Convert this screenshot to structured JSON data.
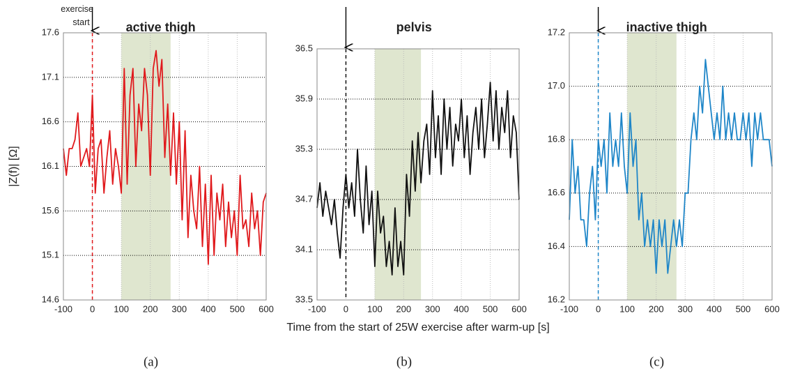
{
  "xlabel": "Time from the start of 25W exercise after warm-up [s]",
  "chart_data": [
    {
      "type": "line",
      "title": "active thigh",
      "panel_label": "(a)",
      "ylabel": "|Z(f)| [Ω]",
      "annotation": "exercise start",
      "event_x": 0,
      "shade": [
        100,
        270
      ],
      "shade_color": "#dfe6cf",
      "event_color": "#e0191c",
      "grid": true,
      "xlim": [
        -100,
        600
      ],
      "xticks": [
        -100,
        0,
        100,
        200,
        300,
        400,
        500,
        600
      ],
      "ylim": [
        14.6,
        17.6
      ],
      "yticks": [
        14.6,
        15.1,
        15.6,
        16.1,
        16.6,
        17.1,
        17.6
      ],
      "x": [
        -100,
        -90,
        -80,
        -70,
        -60,
        -50,
        -40,
        -30,
        -20,
        -10,
        0,
        10,
        20,
        30,
        40,
        50,
        60,
        70,
        80,
        90,
        100,
        110,
        120,
        130,
        140,
        150,
        160,
        170,
        180,
        190,
        200,
        210,
        220,
        230,
        240,
        250,
        260,
        270,
        280,
        290,
        300,
        310,
        320,
        330,
        340,
        350,
        360,
        370,
        380,
        390,
        400,
        410,
        420,
        430,
        440,
        450,
        460,
        470,
        480,
        490,
        500,
        510,
        520,
        530,
        540,
        550,
        560,
        570,
        580,
        590,
        600
      ],
      "series": [
        {
          "color": "#e0191c",
          "values": [
            16.3,
            16.0,
            16.3,
            16.3,
            16.4,
            16.7,
            16.1,
            16.2,
            16.3,
            16.1,
            16.9,
            15.8,
            16.3,
            16.4,
            15.8,
            16.2,
            16.5,
            15.9,
            16.3,
            16.1,
            15.8,
            17.2,
            15.9,
            16.9,
            17.2,
            16.1,
            16.8,
            16.5,
            17.2,
            16.9,
            16.0,
            17.2,
            17.4,
            17.0,
            17.3,
            16.2,
            16.8,
            16.0,
            16.7,
            15.9,
            16.6,
            15.5,
            16.5,
            15.3,
            16.0,
            15.6,
            15.4,
            16.1,
            15.2,
            15.9,
            15.0,
            16.0,
            15.1,
            15.8,
            15.5,
            15.9,
            15.2,
            15.7,
            15.3,
            15.6,
            15.1,
            16.0,
            15.4,
            15.5,
            15.2,
            15.8,
            15.4,
            15.6,
            15.1,
            15.7,
            15.8
          ]
        }
      ]
    },
    {
      "type": "line",
      "title": "pelvis",
      "panel_label": "(b)",
      "event_x": 0,
      "shade": [
        100,
        260
      ],
      "shade_color": "#dfe6cf",
      "event_color": "#111111",
      "grid": true,
      "xlim": [
        -100,
        600
      ],
      "xticks": [
        -100,
        0,
        100,
        200,
        300,
        400,
        500,
        600
      ],
      "ylim": [
        33.5,
        36.5
      ],
      "yticks": [
        33.5,
        34.1,
        34.7,
        35.3,
        35.9,
        36.5
      ],
      "x": [
        -100,
        -90,
        -80,
        -70,
        -60,
        -50,
        -40,
        -30,
        -20,
        -10,
        0,
        10,
        20,
        30,
        40,
        50,
        60,
        70,
        80,
        90,
        100,
        110,
        120,
        130,
        140,
        150,
        160,
        170,
        180,
        190,
        200,
        210,
        220,
        230,
        240,
        250,
        260,
        270,
        280,
        290,
        300,
        310,
        320,
        330,
        340,
        350,
        360,
        370,
        380,
        390,
        400,
        410,
        420,
        430,
        440,
        450,
        460,
        470,
        480,
        490,
        500,
        510,
        520,
        530,
        540,
        550,
        560,
        570,
        580,
        590,
        600
      ],
      "series": [
        {
          "color": "#111111",
          "values": [
            34.6,
            34.9,
            34.5,
            34.8,
            34.6,
            34.4,
            34.7,
            34.3,
            34.0,
            34.6,
            35.0,
            34.6,
            34.9,
            34.5,
            35.3,
            34.7,
            34.3,
            35.1,
            34.4,
            34.8,
            33.9,
            34.8,
            34.3,
            34.5,
            33.9,
            34.2,
            33.8,
            34.6,
            33.9,
            34.2,
            33.8,
            35.0,
            34.5,
            35.4,
            34.8,
            35.5,
            34.9,
            35.4,
            35.6,
            35.0,
            36.0,
            35.2,
            35.7,
            35.0,
            35.9,
            35.3,
            35.8,
            35.1,
            35.6,
            35.4,
            35.9,
            35.2,
            35.7,
            35.0,
            35.5,
            35.8,
            35.3,
            35.9,
            35.2,
            35.6,
            36.1,
            35.4,
            36.0,
            35.3,
            35.8,
            35.5,
            36.0,
            35.2,
            35.7,
            35.5,
            34.7
          ]
        }
      ]
    },
    {
      "type": "line",
      "title": "inactive thigh",
      "panel_label": "(c)",
      "event_x": 0,
      "shade": [
        100,
        270
      ],
      "shade_color": "#dfe6cf",
      "event_color": "#1f86c8",
      "grid": true,
      "xlim": [
        -100,
        600
      ],
      "xticks": [
        -100,
        0,
        100,
        200,
        300,
        400,
        500,
        600
      ],
      "ylim": [
        16.2,
        17.2
      ],
      "yticks": [
        16.2,
        16.4,
        16.6,
        16.8,
        {
          "value": 17,
          "label": "17.0"
        },
        17.2
      ],
      "x": [
        -100,
        -90,
        -80,
        -70,
        -60,
        -50,
        -40,
        -30,
        -20,
        -10,
        0,
        10,
        20,
        30,
        40,
        50,
        60,
        70,
        80,
        90,
        100,
        110,
        120,
        130,
        140,
        150,
        160,
        170,
        180,
        190,
        200,
        210,
        220,
        230,
        240,
        250,
        260,
        270,
        280,
        290,
        300,
        310,
        320,
        330,
        340,
        350,
        360,
        370,
        380,
        390,
        400,
        410,
        420,
        430,
        440,
        450,
        460,
        470,
        480,
        490,
        500,
        510,
        520,
        530,
        540,
        550,
        560,
        570,
        580,
        590,
        600
      ],
      "series": [
        {
          "color": "#1f86c8",
          "values": [
            16.5,
            16.8,
            16.6,
            16.7,
            16.5,
            16.5,
            16.4,
            16.6,
            16.7,
            16.5,
            16.8,
            16.7,
            16.8,
            16.6,
            16.9,
            16.7,
            16.8,
            16.7,
            16.9,
            16.7,
            16.6,
            16.9,
            16.7,
            16.8,
            16.5,
            16.6,
            16.4,
            16.5,
            16.4,
            16.5,
            16.3,
            16.5,
            16.4,
            16.5,
            16.3,
            16.4,
            16.5,
            16.4,
            16.5,
            16.4,
            16.6,
            16.6,
            16.8,
            16.9,
            16.8,
            17.0,
            16.9,
            17.1,
            17.0,
            16.9,
            16.8,
            16.9,
            16.8,
            17.0,
            16.8,
            16.9,
            16.8,
            16.9,
            16.8,
            16.8,
            16.9,
            16.8,
            16.9,
            16.7,
            16.9,
            16.8,
            16.9,
            16.8,
            16.8,
            16.8,
            16.7
          ]
        }
      ]
    }
  ]
}
